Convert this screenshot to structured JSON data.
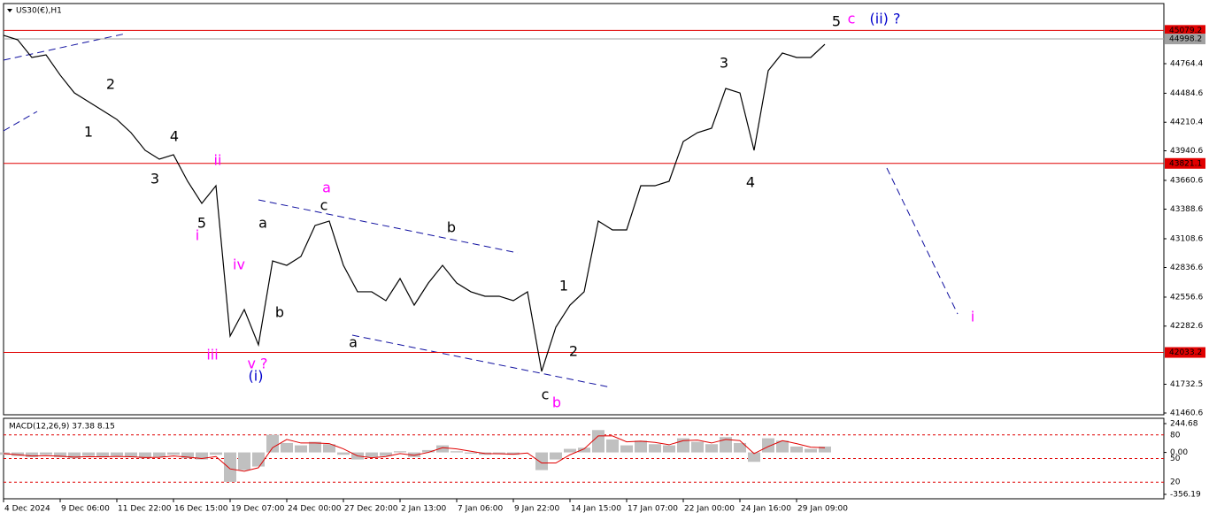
{
  "symbol": "US30(€),H1",
  "chart_data": [
    {
      "type": "line",
      "categories": [
        "4 Dec 2024",
        null,
        null,
        null,
        "9 Dec 06:00",
        null,
        null,
        null,
        "11 Dec 22:00",
        null,
        null,
        null,
        "16 Dec 15:00",
        null,
        null,
        null,
        "19 Dec 07:00",
        null,
        null,
        null,
        "24 Dec 00:00",
        null,
        null,
        null,
        "27 Dec 20:00",
        null,
        null,
        null,
        "2 Jan 13:00",
        null,
        null,
        null,
        "7 Jan 06:00",
        null,
        null,
        null,
        "9 Jan 22:00",
        null,
        null,
        null,
        "14 Jan 15:00",
        null,
        null,
        null,
        "17 Jan 07:00",
        null,
        null,
        null,
        "22 Jan 00:00",
        null,
        null,
        null,
        "24 Jan 16:00",
        null,
        null,
        null,
        "29 Jan 09:00",
        null,
        null
      ],
      "series": [
        {
          "color": "#000000",
          "values": [
            45032,
            44990,
            44823,
            44848,
            44656,
            44488,
            44405,
            44321,
            44237,
            44112,
            43945,
            43861,
            43903,
            43652,
            43443,
            43610,
            42188,
            42439,
            42105,
            42899,
            42857,
            42941,
            43234,
            43276,
            42857,
            42607,
            42607,
            42523,
            42732,
            42481,
            42690,
            42857,
            42690,
            42607,
            42565,
            42565,
            42523,
            42607,
            41854,
            42272,
            42481,
            42607,
            43276,
            43192,
            43192,
            43610,
            43610,
            43652,
            44028,
            44112,
            44154,
            44530,
            44488,
            43945,
            44698,
            44865,
            44823,
            44823,
            44948
          ]
        }
      ],
      "ylim": [
        41444,
        45333
      ],
      "yticks": [
        44764.4,
        44484.6,
        44210.4,
        43940.6,
        43660.6,
        43388.6,
        43108.6,
        42836.6,
        42556.6,
        42282.6,
        41732.5,
        41460.6
      ],
      "hlines": [
        45079.2,
        44998.2,
        43821.1,
        42033.2
      ],
      "hline_colors": [
        "#e00000",
        "#a0a0a0",
        "#e00000",
        "#e00000"
      ],
      "annotations": [
        {
          "text": "5",
          "color": "#000000"
        },
        {
          "text": "c",
          "color": "#ff00ff"
        },
        {
          "text": "(ii) ?",
          "color": "#0000cc"
        },
        {
          "text": "3",
          "color": "#000000"
        },
        {
          "text": "4",
          "color": "#000000"
        },
        {
          "text": "2",
          "color": "#000000"
        },
        {
          "text": "1",
          "color": "#000000"
        },
        {
          "text": "4",
          "color": "#000000"
        },
        {
          "text": "3",
          "color": "#000000"
        },
        {
          "text": "5",
          "color": "#000000"
        },
        {
          "text": "i",
          "color": "#ff00ff"
        },
        {
          "text": "ii",
          "color": "#ff00ff"
        },
        {
          "text": "a",
          "color": "#ff00ff"
        },
        {
          "text": "c",
          "color": "#000000"
        },
        {
          "text": "b",
          "color": "#000000"
        },
        {
          "text": "a",
          "color": "#000000"
        },
        {
          "text": "b",
          "color": "#000000"
        },
        {
          "text": "a",
          "color": "#000000"
        },
        {
          "text": "iv",
          "color": "#ff00ff"
        },
        {
          "text": "iii",
          "color": "#ff00ff"
        },
        {
          "text": "v ?",
          "color": "#ff00ff"
        },
        {
          "text": "(i)",
          "color": "#0000cc"
        },
        {
          "text": "1",
          "color": "#000000"
        },
        {
          "text": "2",
          "color": "#000000"
        },
        {
          "text": "c",
          "color": "#000000"
        },
        {
          "text": "b",
          "color": "#ff00ff"
        },
        {
          "text": "i",
          "color": "#ff00ff"
        }
      ]
    },
    {
      "type": "macd",
      "title": "MACD(12,26,9) 37.38 8.15",
      "series": [
        {
          "color": "#c0c0c0",
          "values": [
            -20,
            -30,
            -40,
            -20,
            -40,
            -50,
            -30,
            -40,
            -30,
            -40,
            -50,
            -40,
            -20,
            -50,
            -60,
            -20,
            -250,
            -150,
            -120,
            150,
            80,
            60,
            90,
            70,
            -20,
            -60,
            -40,
            -30,
            10,
            -40,
            20,
            60,
            10,
            -10,
            -20,
            -10,
            -20,
            0,
            -150,
            -60,
            30,
            40,
            190,
            110,
            60,
            100,
            70,
            60,
            120,
            90,
            70,
            130,
            80,
            -80,
            120,
            100,
            50,
            30,
            50
          ]
        },
        {
          "color": "#e00000",
          "values": [
            -10,
            -20,
            -30,
            -28,
            -32,
            -40,
            -36,
            -38,
            -34,
            -37,
            -44,
            -42,
            -30,
            -40,
            -52,
            -35,
            -140,
            -160,
            -130,
            40,
            110,
            80,
            80,
            75,
            30,
            -30,
            -45,
            -35,
            -10,
            -25,
            0,
            40,
            30,
            10,
            -10,
            -12,
            -15,
            -5,
            -90,
            -90,
            -20,
            30,
            140,
            140,
            90,
            95,
            85,
            65,
            100,
            105,
            80,
            110,
            100,
            -10,
            50,
            100,
            75,
            45,
            40
          ]
        }
      ],
      "ylim": [
        -386.2,
        282.2
      ],
      "yticks": [
        244.68,
        {
          "value": 0,
          "label": "0.00"
        },
        -356.19
      ],
      "y2lim": [
        0,
        100
      ],
      "y2ticks": [
        80,
        50,
        20
      ]
    }
  ]
}
